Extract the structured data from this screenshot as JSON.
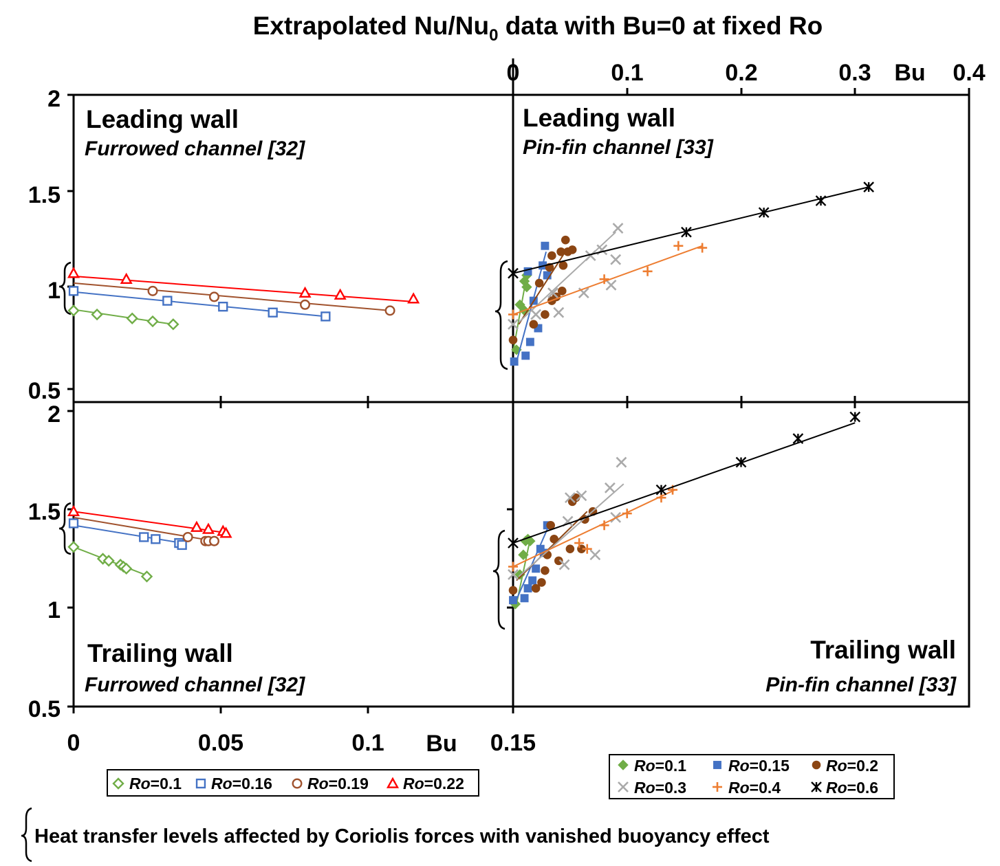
{
  "title": {
    "main": "Extrapolated Nu/Nu",
    "sub": "0",
    "rest": " data with Bu=0 at fixed Ro"
  },
  "footnote": "Heat transfer levels affected by Coriolis forces with vanished buoyancy effect",
  "colors": {
    "green": "#70ad47",
    "blue": "#4472c4",
    "brown": "#a0522d",
    "red": "#ff0000",
    "gray": "#aaaaaa",
    "orange": "#ed7d31",
    "black": "#000000"
  },
  "chart_data": [
    {
      "id": "left_top",
      "type": "scatter",
      "title": "Leading wall",
      "subtitle": "Furrowed channel [32]",
      "xlabel": "Bu",
      "xlim": [
        0,
        0.15
      ],
      "ylim": [
        0.5,
        2
      ],
      "series": [
        {
          "name": "Ro=0.1",
          "marker": "diamond-open",
          "color": "#70ad47",
          "x": [
            0,
            0.008,
            0.02,
            0.027,
            0.034
          ],
          "y": [
            0.9,
            0.88,
            0.86,
            0.845,
            0.83
          ],
          "fit": [
            [
              0,
              0.905
            ],
            [
              0.034,
              0.83
            ]
          ]
        },
        {
          "name": "Ro=0.16",
          "marker": "square-open",
          "color": "#4472c4",
          "x": [
            0,
            0.032,
            0.051,
            0.068,
            0.086
          ],
          "y": [
            1.0,
            0.95,
            0.92,
            0.89,
            0.87
          ],
          "fit": [
            [
              0,
              0.995
            ],
            [
              0.086,
              0.87
            ]
          ]
        },
        {
          "name": "Ro=0.19",
          "marker": "circle-open",
          "color": "#a0522d",
          "x": [
            0.027,
            0.048,
            0.079,
            0.108
          ],
          "y": [
            1.0,
            0.97,
            0.93,
            0.9
          ],
          "fit": [
            [
              0,
              1.04
            ],
            [
              0.108,
              0.9
            ]
          ]
        },
        {
          "name": "Ro=0.22",
          "marker": "triangle-open",
          "color": "#ff0000",
          "x": [
            0,
            0.018,
            0.079,
            0.091,
            0.116
          ],
          "y": [
            1.09,
            1.06,
            0.99,
            0.98,
            0.96
          ],
          "fit": [
            [
              0,
              1.075
            ],
            [
              0.116,
              0.945
            ]
          ]
        }
      ]
    },
    {
      "id": "left_bottom",
      "type": "scatter",
      "title": "Trailing wall",
      "subtitle": "Furrowed channel [32]",
      "xlabel": "Bu",
      "xlim": [
        0,
        0.15
      ],
      "ylim": [
        0.5,
        2
      ],
      "series": [
        {
          "name": "Ro=0.1",
          "marker": "diamond-open",
          "color": "#70ad47",
          "x": [
            0,
            0.01,
            0.012,
            0.016,
            0.017,
            0.018,
            0.025
          ],
          "y": [
            1.31,
            1.25,
            1.24,
            1.22,
            1.21,
            1.2,
            1.16
          ],
          "fit": [
            [
              0,
              1.31
            ],
            [
              0.026,
              1.16
            ]
          ]
        },
        {
          "name": "Ro=0.16",
          "marker": "square-open",
          "color": "#4472c4",
          "x": [
            0,
            0.024,
            0.028,
            0.036,
            0.037
          ],
          "y": [
            1.43,
            1.36,
            1.35,
            1.33,
            1.32
          ],
          "fit": [
            [
              0,
              1.42
            ],
            [
              0.037,
              1.33
            ]
          ]
        },
        {
          "name": "Ro=0.19",
          "marker": "circle-open",
          "color": "#a0522d",
          "x": [
            0.039,
            0.045,
            0.046,
            0.048
          ],
          "y": [
            1.36,
            1.34,
            1.34,
            1.34
          ],
          "fit": [
            [
              0,
              1.46
            ],
            [
              0.048,
              1.34
            ]
          ]
        },
        {
          "name": "Ro=0.22",
          "marker": "triangle-open",
          "color": "#ff0000",
          "x": [
            0,
            0.042,
            0.046,
            0.051,
            0.052
          ],
          "y": [
            1.49,
            1.41,
            1.4,
            1.39,
            1.38
          ],
          "fit": [
            [
              0,
              1.49
            ],
            [
              0.053,
              1.38
            ]
          ]
        }
      ]
    },
    {
      "id": "right_top",
      "type": "scatter",
      "title": "Leading wall",
      "subtitle": "Pin-fin channel [33]",
      "xlabel": "Bu",
      "xlim": [
        0,
        0.4
      ],
      "ylim": [
        0.5,
        2
      ],
      "xticks": [
        0,
        0.1,
        0.2,
        0.3,
        0.4
      ],
      "series": [
        {
          "name": "Ro=0.1",
          "marker": "diamond",
          "color": "#70ad47",
          "x": [
            0.003,
            0.006,
            0.01,
            0.012,
            0.012,
            0.01
          ],
          "y": [
            0.7,
            0.93,
            0.9,
            1.02,
            1.08,
            1.05
          ],
          "fit": [
            [
              0,
              0.69
            ],
            [
              0.012,
              1.08
            ]
          ]
        },
        {
          "name": "Ro=0.15",
          "marker": "square",
          "color": "#4472c4",
          "x": [
            0.001,
            0.011,
            0.015,
            0.018,
            0.022,
            0.026,
            0.028,
            0.03,
            0.013
          ],
          "y": [
            0.64,
            0.67,
            0.74,
            0.95,
            0.81,
            1.13,
            1.23,
            1.08,
            1.1
          ],
          "fit": [
            [
              0.004,
              0.66
            ],
            [
              0.029,
              1.2
            ]
          ]
        },
        {
          "name": "Ro=0.2",
          "marker": "circle",
          "color": "#8b4513",
          "x": [
            0.0,
            0.018,
            0.023,
            0.028,
            0.032,
            0.034,
            0.038,
            0.042,
            0.044,
            0.046,
            0.048,
            0.052,
            0.043,
            0.034
          ],
          "y": [
            0.75,
            0.83,
            1.04,
            0.88,
            1.12,
            1.18,
            0.97,
            1.2,
            1.13,
            1.26,
            1.2,
            1.21,
            1.0,
            0.95
          ],
          "fit": [
            [
              0.005,
              0.83
            ],
            [
              0.048,
              1.22
            ]
          ]
        },
        {
          "name": "Ro=0.3",
          "marker": "x",
          "color": "#aaaaaa",
          "x": [
            0.0,
            0.02,
            0.035,
            0.04,
            0.062,
            0.068,
            0.078,
            0.086,
            0.09,
            0.092
          ],
          "y": [
            0.83,
            0.88,
            0.99,
            0.89,
            0.99,
            1.18,
            1.21,
            1.03,
            1.16,
            1.32
          ],
          "fit": [
            [
              0.005,
              0.84
            ],
            [
              0.09,
              1.3
            ]
          ]
        },
        {
          "name": "Ro=0.4",
          "marker": "plus",
          "color": "#ed7d31",
          "x": [
            0.0,
            0.08,
            0.118,
            0.145,
            0.166
          ],
          "y": [
            0.88,
            1.06,
            1.1,
            1.23,
            1.22
          ],
          "fit": [
            [
              0,
              0.88
            ],
            [
              0.166,
              1.23
            ]
          ]
        },
        {
          "name": "Ro=0.6",
          "marker": "asterisk",
          "color": "#000000",
          "x": [
            0.0,
            0.152,
            0.22,
            0.27,
            0.312
          ],
          "y": [
            1.09,
            1.3,
            1.4,
            1.46,
            1.53
          ],
          "fit": [
            [
              0,
              1.09
            ],
            [
              0.312,
              1.53
            ]
          ]
        }
      ]
    },
    {
      "id": "right_bottom",
      "type": "scatter",
      "title": "Trailing wall",
      "subtitle": "Pin-fin channel [33]",
      "xlabel": "Bu",
      "xlim": [
        0,
        0.4
      ],
      "ylim": [
        0.5,
        2
      ],
      "series": [
        {
          "name": "Ro=0.1",
          "marker": "diamond",
          "color": "#70ad47",
          "x": [
            0.002,
            0.006,
            0.009,
            0.011,
            0.013,
            0.015
          ],
          "y": [
            1.02,
            1.17,
            1.27,
            1.34,
            1.35,
            1.34
          ],
          "fit": [
            [
              0.003,
              1.02
            ],
            [
              0.015,
              1.35
            ]
          ]
        },
        {
          "name": "Ro=0.15",
          "marker": "square",
          "color": "#4472c4",
          "x": [
            0.0,
            0.01,
            0.013,
            0.017,
            0.024,
            0.03,
            0.027,
            0.02
          ],
          "y": [
            1.04,
            1.05,
            1.1,
            1.14,
            1.3,
            1.42,
            1.28,
            1.2
          ],
          "fit": [
            [
              0.002,
              1.03
            ],
            [
              0.03,
              1.4
            ]
          ]
        },
        {
          "name": "Ro=0.2",
          "marker": "circle",
          "color": "#8b4513",
          "x": [
            0.0,
            0.02,
            0.025,
            0.028,
            0.03,
            0.033,
            0.036,
            0.04,
            0.05,
            0.052,
            0.055,
            0.06,
            0.063,
            0.07
          ],
          "y": [
            1.09,
            1.1,
            1.13,
            1.19,
            1.27,
            1.42,
            1.35,
            1.24,
            1.3,
            1.54,
            1.56,
            1.3,
            1.45,
            1.49
          ],
          "fit": [
            [
              0.003,
              1.14
            ],
            [
              0.065,
              1.49
            ]
          ]
        },
        {
          "name": "Ro=0.3",
          "marker": "x",
          "color": "#aaaaaa",
          "x": [
            0.0,
            0.045,
            0.048,
            0.05,
            0.06,
            0.072,
            0.085,
            0.09,
            0.095
          ],
          "y": [
            1.17,
            1.22,
            1.44,
            1.56,
            1.57,
            1.27,
            1.61,
            1.46,
            1.74
          ],
          "fit": [
            [
              0.005,
              1.16
            ],
            [
              0.097,
              1.63
            ]
          ]
        },
        {
          "name": "Ro=0.4",
          "marker": "plus",
          "color": "#ed7d31",
          "x": [
            0.0,
            0.058,
            0.065,
            0.08,
            0.1,
            0.13,
            0.14
          ],
          "y": [
            1.21,
            1.33,
            1.3,
            1.42,
            1.48,
            1.56,
            1.6
          ],
          "fit": [
            [
              0,
              1.21
            ],
            [
              0.142,
              1.6
            ]
          ]
        },
        {
          "name": "Ro=0.6",
          "marker": "asterisk",
          "color": "#000000",
          "x": [
            0.0,
            0.13,
            0.2,
            0.25,
            0.3
          ],
          "y": [
            1.33,
            1.6,
            1.74,
            1.86,
            1.97
          ],
          "fit": [
            [
              0,
              1.33
            ],
            [
              0.3,
              1.94
            ]
          ]
        }
      ]
    }
  ],
  "axes": {
    "left_y_ticks": [
      "0.5",
      "1",
      "1.5",
      "2"
    ],
    "bottom_x_ticks": [
      "0",
      "0.05",
      "0.1",
      "0.15"
    ],
    "top_x_ticks": [
      "0",
      "0.1",
      "0.2",
      "0.3",
      "0.4"
    ],
    "bottom_x_label": "Bu",
    "top_x_label": "Bu"
  },
  "legend_left": [
    {
      "marker": "diamond-open",
      "color": "#70ad47",
      "italic": "Ro",
      "text": "=0.1"
    },
    {
      "marker": "square-open",
      "color": "#4472c4",
      "italic": "Ro",
      "text": "=0.16"
    },
    {
      "marker": "circle-open",
      "color": "#a0522d",
      "italic": "Ro",
      "text": "=0.19"
    },
    {
      "marker": "triangle-open",
      "color": "#ff0000",
      "italic": "Ro",
      "text": "=0.22"
    }
  ],
  "legend_right": [
    {
      "marker": "diamond",
      "color": "#70ad47",
      "italic": "Ro",
      "text": "=0.1"
    },
    {
      "marker": "square",
      "color": "#4472c4",
      "italic": "Ro",
      "text": "=0.15"
    },
    {
      "marker": "circle",
      "color": "#8b4513",
      "italic": "Ro",
      "text": "=0.2"
    },
    {
      "marker": "x",
      "color": "#aaaaaa",
      "italic": "Ro",
      "text": "=0.3"
    },
    {
      "marker": "plus",
      "color": "#ed7d31",
      "italic": "Ro",
      "text": "=0.4"
    },
    {
      "marker": "asterisk",
      "color": "#000000",
      "italic": "Ro",
      "text": "=0.6"
    }
  ]
}
